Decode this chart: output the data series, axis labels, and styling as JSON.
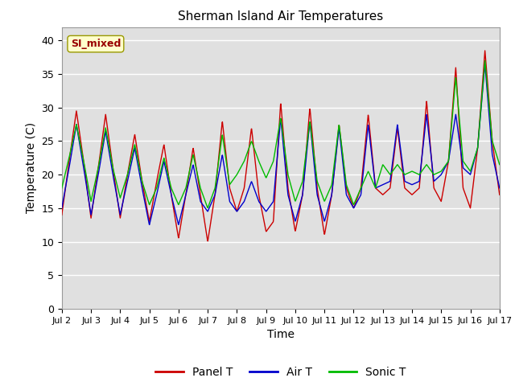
{
  "title": "Sherman Island Air Temperatures",
  "xlabel": "Time",
  "ylabel": "Temperature (C)",
  "ylim": [
    0,
    42
  ],
  "yticks": [
    0,
    5,
    10,
    15,
    20,
    25,
    30,
    35,
    40
  ],
  "xlim_start": 0,
  "xlim_end": 15,
  "xtick_labels": [
    "Jul 2",
    "Jul 3",
    "Jul 4",
    "Jul 5",
    "Jul 6",
    "Jul 7",
    "Jul 8",
    "Jul 9",
    "Jul 10",
    "Jul 11",
    "Jul 12",
    "Jul 13",
    "Jul 14",
    "Jul 15",
    "Jul 16",
    "Jul 17"
  ],
  "panel_color": "#cc0000",
  "air_color": "#0000cc",
  "sonic_color": "#00bb00",
  "bg_color": "#e0e0e0",
  "annotation_text": "SI_mixed",
  "annotation_color": "#990000",
  "annotation_bg": "#ffffcc",
  "legend_entries": [
    "Panel T",
    "Air T",
    "Sonic T"
  ],
  "panel_ctrl_x": [
    0.0,
    0.25,
    0.5,
    0.75,
    1.0,
    1.25,
    1.5,
    1.75,
    2.0,
    2.25,
    2.5,
    2.75,
    3.0,
    3.25,
    3.5,
    3.75,
    4.0,
    4.25,
    4.5,
    4.75,
    5.0,
    5.25,
    5.5,
    5.75,
    6.0,
    6.25,
    6.5,
    6.75,
    7.0,
    7.25,
    7.5,
    7.75,
    8.0,
    8.25,
    8.5,
    8.75,
    9.0,
    9.25,
    9.5,
    9.75,
    10.0,
    10.25,
    10.5,
    10.75,
    11.0,
    11.25,
    11.5,
    11.75,
    12.0,
    12.25,
    12.5,
    12.75,
    13.0,
    13.25,
    13.5,
    13.75,
    14.0,
    14.25,
    14.5,
    14.75,
    15.0
  ],
  "panel_ctrl_y": [
    14.0,
    22.0,
    29.5,
    22.0,
    13.5,
    21.0,
    29.0,
    21.0,
    13.5,
    20.0,
    26.0,
    19.0,
    13.0,
    19.0,
    24.5,
    17.0,
    10.5,
    17.0,
    24.0,
    17.0,
    10.0,
    17.0,
    28.0,
    18.0,
    14.5,
    18.0,
    27.0,
    17.0,
    11.5,
    13.0,
    30.8,
    18.0,
    11.5,
    17.0,
    30.0,
    18.0,
    11.0,
    17.0,
    27.5,
    18.0,
    15.0,
    18.0,
    29.0,
    18.0,
    17.0,
    18.0,
    27.0,
    18.0,
    17.0,
    18.0,
    31.0,
    18.0,
    16.0,
    22.0,
    36.0,
    18.0,
    15.0,
    24.0,
    38.5,
    25.0,
    17.0
  ],
  "air_ctrl_x": [
    0.0,
    0.25,
    0.5,
    0.75,
    1.0,
    1.25,
    1.5,
    1.75,
    2.0,
    2.25,
    2.5,
    2.75,
    3.0,
    3.25,
    3.5,
    3.75,
    4.0,
    4.25,
    4.5,
    4.75,
    5.0,
    5.25,
    5.5,
    5.75,
    6.0,
    6.25,
    6.5,
    6.75,
    7.0,
    7.25,
    7.5,
    7.75,
    8.0,
    8.25,
    8.5,
    8.75,
    9.0,
    9.25,
    9.5,
    9.75,
    10.0,
    10.25,
    10.5,
    10.75,
    11.0,
    11.25,
    11.5,
    11.75,
    12.0,
    12.25,
    12.5,
    12.75,
    13.0,
    13.25,
    13.5,
    13.75,
    14.0,
    14.25,
    14.5,
    14.75,
    15.0
  ],
  "air_ctrl_y": [
    15.0,
    21.0,
    27.5,
    21.0,
    14.0,
    20.0,
    26.5,
    20.0,
    14.0,
    19.0,
    24.0,
    18.0,
    12.5,
    17.0,
    22.0,
    17.0,
    12.5,
    17.0,
    21.5,
    16.0,
    14.5,
    17.0,
    23.0,
    16.0,
    14.5,
    16.0,
    19.0,
    16.0,
    14.5,
    16.0,
    28.5,
    17.0,
    13.0,
    17.0,
    28.0,
    17.0,
    13.0,
    17.0,
    27.0,
    17.0,
    15.0,
    17.0,
    27.5,
    18.0,
    18.5,
    19.0,
    27.5,
    19.0,
    18.5,
    19.0,
    29.0,
    19.0,
    20.0,
    22.0,
    29.0,
    21.0,
    20.0,
    24.0,
    36.5,
    23.0,
    18.0
  ],
  "sonic_ctrl_x": [
    0.0,
    0.25,
    0.5,
    0.75,
    1.0,
    1.25,
    1.5,
    1.75,
    2.0,
    2.25,
    2.5,
    2.75,
    3.0,
    3.25,
    3.5,
    3.75,
    4.0,
    4.25,
    4.5,
    4.75,
    5.0,
    5.25,
    5.5,
    5.75,
    6.0,
    6.25,
    6.5,
    6.75,
    7.0,
    7.25,
    7.5,
    7.75,
    8.0,
    8.25,
    8.5,
    8.75,
    9.0,
    9.25,
    9.5,
    9.75,
    10.0,
    10.25,
    10.5,
    10.75,
    11.0,
    11.25,
    11.5,
    11.75,
    12.0,
    12.25,
    12.5,
    12.75,
    13.0,
    13.25,
    13.5,
    13.75,
    14.0,
    14.25,
    14.5,
    14.75,
    15.0
  ],
  "sonic_ctrl_y": [
    18.0,
    22.5,
    27.5,
    22.0,
    16.0,
    21.0,
    27.0,
    21.0,
    16.5,
    20.0,
    24.5,
    19.0,
    15.5,
    18.0,
    22.5,
    18.0,
    15.5,
    18.0,
    23.0,
    18.0,
    15.0,
    18.0,
    26.0,
    18.5,
    20.0,
    22.0,
    25.0,
    22.0,
    19.5,
    22.0,
    28.5,
    20.0,
    16.0,
    19.0,
    28.0,
    19.0,
    16.0,
    18.5,
    27.5,
    18.5,
    15.5,
    18.0,
    20.5,
    18.0,
    21.5,
    20.0,
    21.5,
    20.0,
    20.5,
    20.0,
    21.5,
    20.0,
    20.5,
    22.0,
    34.5,
    22.0,
    20.5,
    24.0,
    37.0,
    25.0,
    21.5
  ]
}
